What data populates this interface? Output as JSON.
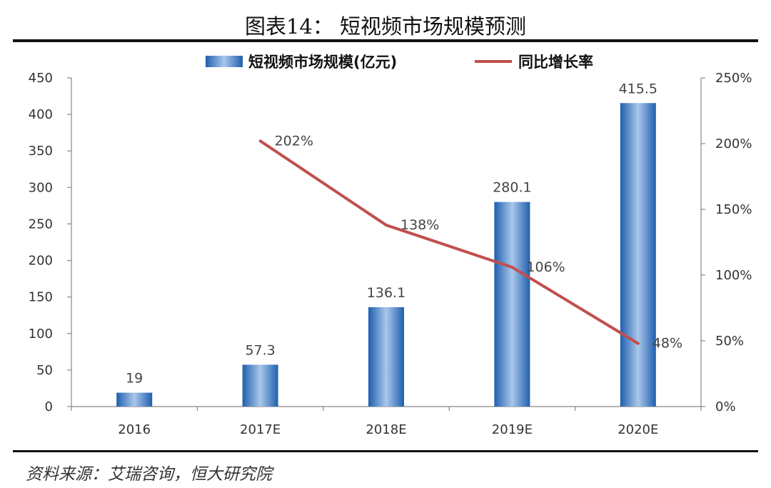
{
  "figure_title": "图表14：  短视频市场规模预测",
  "source": "资料来源：艾瑞咨询，恒大研究院",
  "colors": {
    "bar": "#2f74c0",
    "line": "#c0504d"
  },
  "chart_data": {
    "type": "bar",
    "categories": [
      "2016",
      "2017E",
      "2018E",
      "2019E",
      "2020E"
    ],
    "series": [
      {
        "name": "短视频市场规模(亿元)",
        "type": "bar",
        "axis": "left",
        "values": [
          19,
          57.3,
          136.1,
          280.1,
          415.5
        ],
        "labels": [
          "19",
          "57.3",
          "136.1",
          "280.1",
          "415.5"
        ]
      },
      {
        "name": "同比增长率",
        "type": "line",
        "axis": "right",
        "values": [
          null,
          202,
          138,
          106,
          48
        ],
        "labels": [
          null,
          "202%",
          "138%",
          "106%",
          "48%"
        ]
      }
    ],
    "y_left": {
      "min": 0,
      "max": 450,
      "ticks": [
        "0",
        "50",
        "100",
        "150",
        "200",
        "250",
        "300",
        "350",
        "400",
        "450"
      ]
    },
    "y_right": {
      "min": 0,
      "max": 250,
      "ticks": [
        "0%",
        "50%",
        "100%",
        "150%",
        "200%",
        "250%"
      ]
    },
    "grid": false,
    "legend_position": "top"
  }
}
